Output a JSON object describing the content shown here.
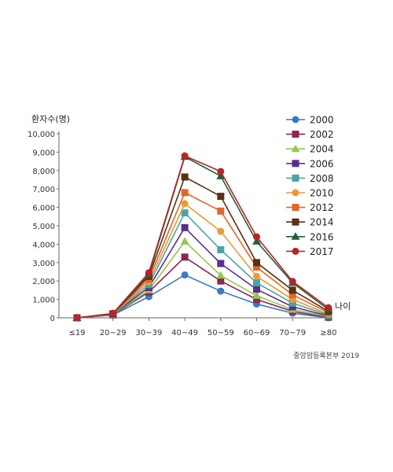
{
  "chart_data": {
    "type": "line",
    "ylabel": "환자수(명)",
    "xlabel": "나이",
    "source": "중앙암등록본부 2019",
    "categories": [
      "≤19",
      "20~29",
      "30~39",
      "40~49",
      "50~59",
      "60~69",
      "70~79",
      "≥80"
    ],
    "y_ticks": [
      "0",
      "1,000",
      "2,000",
      "3,000",
      "4,000",
      "5,000",
      "6,000",
      "7,000",
      "8,000",
      "9,000",
      "10,000"
    ],
    "ylim": [
      0,
      10000
    ],
    "grid": false,
    "legend_position": "top-right",
    "series": [
      {
        "name": "2000",
        "color": "#3a78c4",
        "marker": "circle",
        "values": [
          0,
          150,
          1150,
          2330,
          1450,
          750,
          250,
          0
        ]
      },
      {
        "name": "2002",
        "color": "#8b2752",
        "marker": "square",
        "values": [
          0,
          160,
          1400,
          3300,
          2000,
          1000,
          350,
          30
        ]
      },
      {
        "name": "2004",
        "color": "#96c84a",
        "marker": "triangle",
        "values": [
          0,
          170,
          1500,
          4150,
          2300,
          1200,
          450,
          60
        ]
      },
      {
        "name": "2006",
        "color": "#5b2d8e",
        "marker": "square",
        "values": [
          0,
          180,
          1650,
          4900,
          2950,
          1550,
          600,
          100
        ]
      },
      {
        "name": "2008",
        "color": "#4aa3a6",
        "marker": "square",
        "values": [
          0,
          190,
          1800,
          5700,
          3700,
          1900,
          800,
          150
        ]
      },
      {
        "name": "2010",
        "color": "#eb9a35",
        "marker": "circle",
        "values": [
          0,
          200,
          1950,
          6200,
          4700,
          2250,
          1000,
          200
        ]
      },
      {
        "name": "2012",
        "color": "#e2672b",
        "marker": "square",
        "values": [
          0,
          210,
          2100,
          6800,
          5800,
          2750,
          1250,
          280
        ]
      },
      {
        "name": "2014",
        "color": "#5a3013",
        "marker": "square",
        "values": [
          0,
          220,
          2250,
          7650,
          6600,
          3000,
          1500,
          350
        ]
      },
      {
        "name": "2016",
        "color": "#22603a",
        "marker": "triangle",
        "values": [
          0,
          230,
          2350,
          8750,
          7700,
          4150,
          1900,
          450
        ]
      },
      {
        "name": "2017",
        "color": "#b5252a",
        "marker": "circle",
        "values": [
          0,
          240,
          2450,
          8800,
          7950,
          4400,
          1980,
          550
        ]
      }
    ]
  }
}
